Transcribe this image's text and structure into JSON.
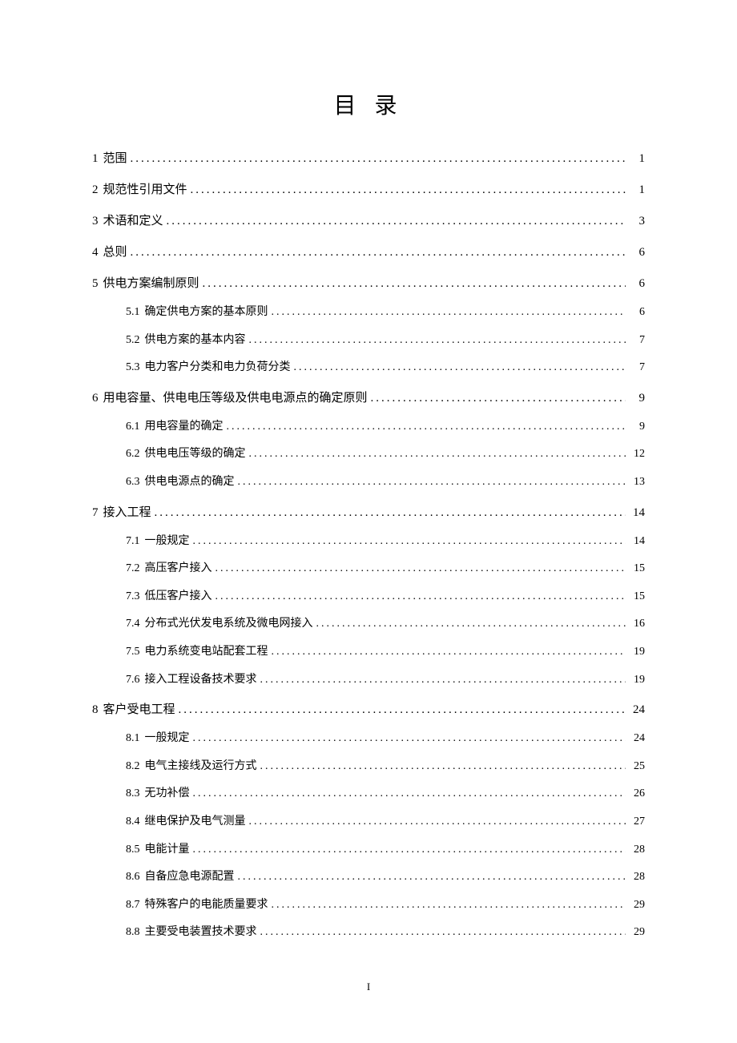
{
  "title": "目 录",
  "page_number": "I",
  "toc": [
    {
      "level": 1,
      "num": "1",
      "label": "范围",
      "page": "1"
    },
    {
      "level": 1,
      "num": "2",
      "label": "规范性引用文件",
      "page": "1"
    },
    {
      "level": 1,
      "num": "3",
      "label": "术语和定义",
      "page": "3"
    },
    {
      "level": 1,
      "num": "4",
      "label": "总则",
      "page": "6"
    },
    {
      "level": 1,
      "num": "5",
      "label": "供电方案编制原则",
      "page": "6"
    },
    {
      "level": 2,
      "num": "5.1",
      "label": "确定供电方案的基本原则",
      "page": "6"
    },
    {
      "level": 2,
      "num": "5.2",
      "label": "供电方案的基本内容",
      "page": "7"
    },
    {
      "level": 2,
      "num": "5.3",
      "label": "电力客户分类和电力负荷分类",
      "page": "7"
    },
    {
      "level": 1,
      "num": "6",
      "label": "用电容量、供电电压等级及供电电源点的确定原则",
      "page": "9"
    },
    {
      "level": 2,
      "num": "6.1",
      "label": "用电容量的确定",
      "page": "9"
    },
    {
      "level": 2,
      "num": "6.2",
      "label": "供电电压等级的确定",
      "page": "12"
    },
    {
      "level": 2,
      "num": "6.3",
      "label": "供电电源点的确定",
      "page": "13"
    },
    {
      "level": 1,
      "num": "7",
      "label": "接入工程",
      "page": "14"
    },
    {
      "level": 2,
      "num": "7.1",
      "label": "一般规定",
      "page": "14"
    },
    {
      "level": 2,
      "num": "7.2",
      "label": "高压客户接入",
      "page": "15"
    },
    {
      "level": 2,
      "num": "7.3",
      "label": "低压客户接入",
      "page": "15"
    },
    {
      "level": 2,
      "num": "7.4",
      "label": "分布式光伏发电系统及微电网接入",
      "page": "16"
    },
    {
      "level": 2,
      "num": "7.5",
      "label": "电力系统变电站配套工程",
      "page": "19"
    },
    {
      "level": 2,
      "num": "7.6",
      "label": "接入工程设备技术要求",
      "page": "19"
    },
    {
      "level": 1,
      "num": "8",
      "label": "客户受电工程",
      "page": "24"
    },
    {
      "level": 2,
      "num": "8.1",
      "label": "一般规定",
      "page": "24"
    },
    {
      "level": 2,
      "num": "8.2",
      "label": "电气主接线及运行方式",
      "page": "25"
    },
    {
      "level": 2,
      "num": "8.3",
      "label": "无功补偿",
      "page": "26"
    },
    {
      "level": 2,
      "num": "8.4",
      "label": "继电保护及电气测量",
      "page": "27"
    },
    {
      "level": 2,
      "num": "8.5",
      "label": "电能计量",
      "page": "28"
    },
    {
      "level": 2,
      "num": "8.6",
      "label": "自备应急电源配置",
      "page": "28"
    },
    {
      "level": 2,
      "num": "8.7",
      "label": "特殊客户的电能质量要求",
      "page": "29"
    },
    {
      "level": 2,
      "num": "8.8",
      "label": "主要受电装置技术要求",
      "page": "29"
    }
  ]
}
